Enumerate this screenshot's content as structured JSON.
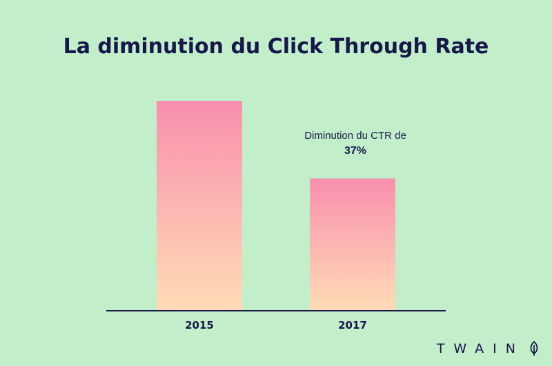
{
  "chart_data": {
    "type": "bar",
    "title": "La diminution du Click Through Rate",
    "categories": [
      "2015",
      "2017"
    ],
    "values": [
      100,
      63
    ],
    "ylim": [
      0,
      100
    ],
    "xlabel": "",
    "ylabel": "",
    "grid": false,
    "colors": {
      "bar_top": "#f98fae",
      "bar_bottom": "#ffdcb5",
      "axis": "#16184a",
      "background": "#c2efca"
    },
    "annotation": {
      "text": "Diminution du CTR de",
      "value": "37%"
    }
  },
  "brand": {
    "name": "TWAIN",
    "icon": "leaf-icon"
  }
}
